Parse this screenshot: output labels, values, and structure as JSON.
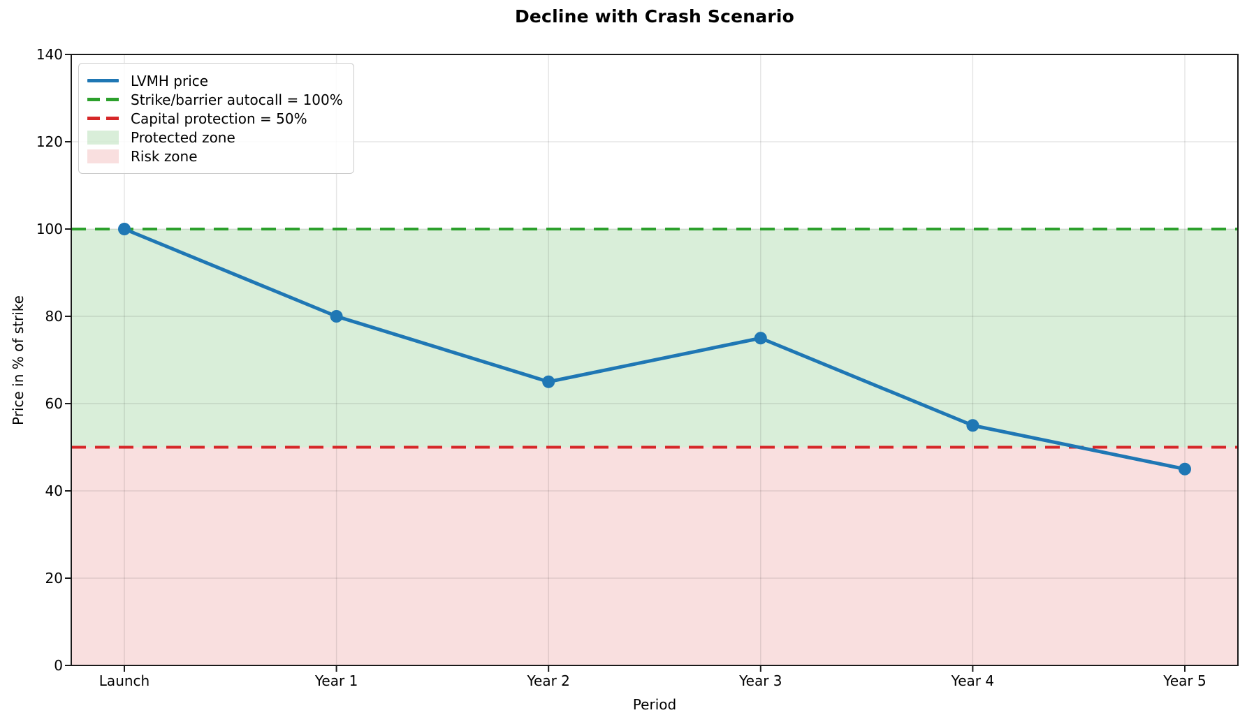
{
  "chart_data": {
    "type": "line",
    "title": "Decline with Crash Scenario",
    "xlabel": "Period",
    "ylabel": "Price in % of strike",
    "categories": [
      "Launch",
      "Year 1",
      "Year 2",
      "Year 3",
      "Year 4",
      "Year 5"
    ],
    "series": [
      {
        "name": "LVMH price",
        "color": "#1f77b4",
        "values": [
          100,
          80,
          65,
          75,
          55,
          45
        ]
      }
    ],
    "reference_lines": [
      {
        "label": "Strike/barrier autocall = 100%",
        "value": 100,
        "color": "#2ca02c",
        "style": "dashed"
      },
      {
        "label": "Capital protection = 50%",
        "value": 50,
        "color": "#d62728",
        "style": "dashed"
      }
    ],
    "zones": [
      {
        "label": "Protected zone",
        "from": 50,
        "to": 100,
        "color": "rgba(44,160,44,0.18)"
      },
      {
        "label": "Risk zone",
        "from": 0,
        "to": 50,
        "color": "rgba(214,39,40,0.15)"
      }
    ],
    "ylim": [
      0,
      140
    ],
    "yticks": [
      0,
      20,
      40,
      60,
      80,
      100,
      120,
      140
    ],
    "grid": true,
    "legend_position": "upper left",
    "legend": [
      {
        "type": "line",
        "style": "solid",
        "color": "#1f77b4",
        "label": "LVMH price"
      },
      {
        "type": "line",
        "style": "dashed",
        "color": "#2ca02c",
        "label": "Strike/barrier autocall = 100%"
      },
      {
        "type": "line",
        "style": "dashed",
        "color": "#d62728",
        "label": "Capital protection = 50%"
      },
      {
        "type": "patch",
        "style": "fill",
        "color": "rgba(44,160,44,0.18)",
        "label": "Protected zone"
      },
      {
        "type": "patch",
        "style": "fill",
        "color": "rgba(214,39,40,0.15)",
        "label": "Risk zone"
      }
    ],
    "style": {
      "grid_color": "rgba(0,0,0,0.10)",
      "spine_color": "#1a1a1a",
      "marker_radius": 9,
      "line_width": 5,
      "dash_pattern": "21 13"
    }
  }
}
